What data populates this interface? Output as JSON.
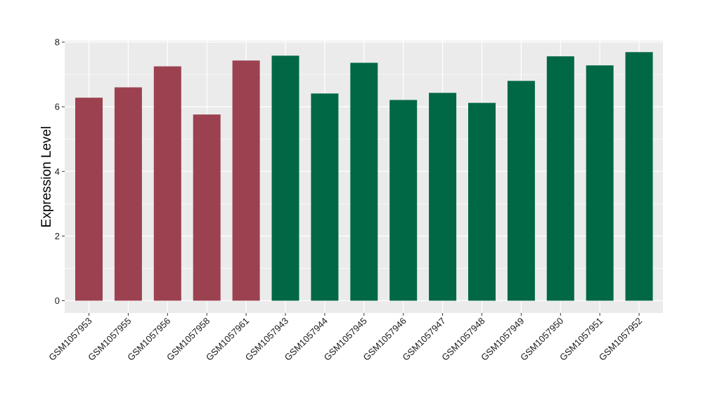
{
  "chart_data": {
    "type": "bar",
    "title": "",
    "xlabel": "",
    "ylabel": "Expression Level",
    "ylim": [
      0,
      8.4
    ],
    "yticks": [
      0,
      2,
      4,
      6,
      8
    ],
    "grid": true,
    "legend": "none",
    "categories": [
      "GSM1057953",
      "GSM1057955",
      "GSM1057956",
      "GSM1057958",
      "GSM1057961",
      "GSM1057943",
      "GSM1057944",
      "GSM1057945",
      "GSM1057946",
      "GSM1057947",
      "GSM1057948",
      "GSM1057949",
      "GSM1057950",
      "GSM1057951",
      "GSM1057952"
    ],
    "values": [
      6.28,
      6.6,
      7.25,
      5.76,
      7.43,
      7.58,
      6.41,
      7.36,
      6.21,
      6.43,
      6.12,
      6.8,
      7.56,
      7.28,
      7.69
    ],
    "groups": [
      0,
      0,
      0,
      0,
      0,
      1,
      1,
      1,
      1,
      1,
      1,
      1,
      1,
      1,
      1
    ],
    "colors": {
      "group_0": "#9c4150",
      "group_1": "#006845",
      "panel_background": "#ebebeb",
      "grid": "#ffffff"
    }
  }
}
